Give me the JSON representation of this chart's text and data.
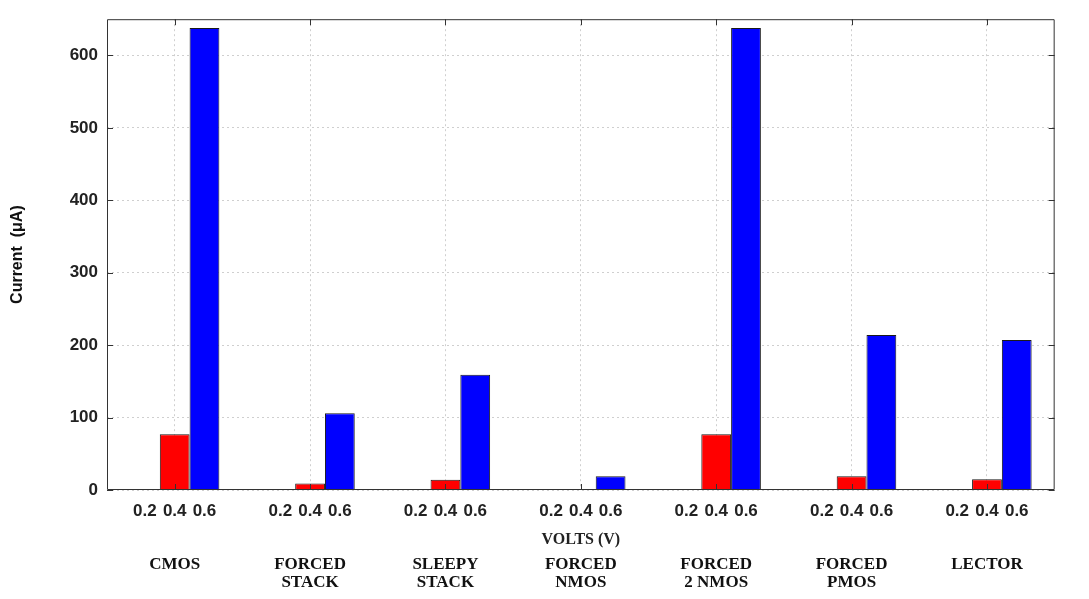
{
  "chart_data": {
    "type": "bar",
    "categories": [
      "CMOS",
      "FORCED\nSTACK",
      "SLEEPY\nSTACK",
      "FORCED\nNMOS",
      "FORCED\n2 NMOS",
      "FORCED\nPMOS",
      "LECTOR"
    ],
    "series": [
      {
        "name": "0.2",
        "color": "#000000",
        "values": [
          0,
          0,
          0,
          0,
          0,
          0,
          0
        ]
      },
      {
        "name": "0.4",
        "color": "#ff0000",
        "values": [
          77,
          9,
          14,
          1,
          77,
          19,
          15
        ]
      },
      {
        "name": "0.6",
        "color": "#0000ff",
        "values": [
          638,
          106,
          159,
          19,
          638,
          214,
          207
        ]
      }
    ],
    "xlabel": "VOLTS (V)",
    "ylabel": "Current  (μA)",
    "ylim": [
      0,
      650
    ],
    "yticks": [
      0,
      100,
      200,
      300,
      400,
      500,
      600
    ],
    "grid": true,
    "legend": false
  }
}
